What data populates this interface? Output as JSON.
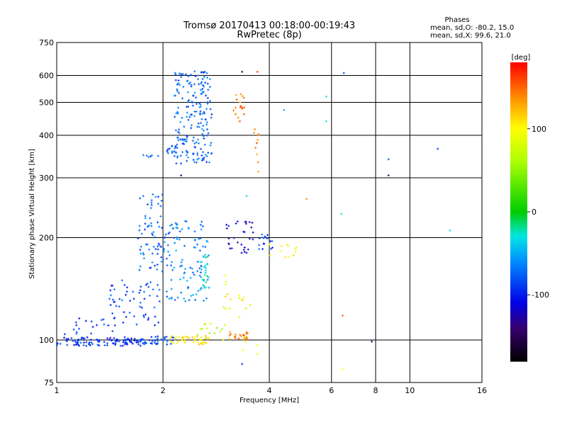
{
  "header": {
    "title_line1": "Tromsø 20170413 00:18:00-00:19:43",
    "title_line2": "RwPretec (8p)",
    "phases_label": "Phases",
    "phases_o": "mean, sd,O: -80.2, 15.0",
    "phases_x": "mean, sd,X:  99.6, 21.0"
  },
  "chart_data": {
    "type": "scatter",
    "xlabel": "Frequency [MHz]",
    "ylabel": "Stationary phase Virtual Height [km]",
    "xscale": "log",
    "yscale": "log",
    "xlim": [
      1,
      16
    ],
    "ylim": [
      75,
      750
    ],
    "xticks": [
      1,
      2,
      4,
      6,
      8,
      10,
      16
    ],
    "yticks": [
      75,
      100,
      200,
      300,
      400,
      500,
      600,
      750
    ],
    "grid": true,
    "colorbar": {
      "label": "[deg]",
      "range": [
        -180,
        180
      ],
      "ticks": [
        100,
        0,
        -100
      ],
      "colormap": "rainbow"
    },
    "clusters": [
      {
        "f": [
          1.0,
          1.75
        ],
        "h": [
          96,
          102
        ],
        "phase": -95,
        "n": 110
      },
      {
        "f": [
          1.75,
          2.15
        ],
        "h": [
          97,
          103
        ],
        "phase": -85,
        "n": 35
      },
      {
        "f": [
          2.1,
          2.7
        ],
        "h": [
          97,
          103
        ],
        "phase": 110,
        "n": 45
      },
      {
        "f": [
          2.5,
          3.0
        ],
        "h": [
          100,
          112
        ],
        "phase": 60,
        "n": 15
      },
      {
        "f": [
          3.05,
          3.5
        ],
        "h": [
          100,
          106
        ],
        "phase": 140,
        "n": 22
      },
      {
        "f": [
          1.05,
          1.5
        ],
        "h": [
          104,
          118
        ],
        "phase": -90,
        "n": 18
      },
      {
        "f": [
          1.4,
          2.0
        ],
        "h": [
          110,
          150
        ],
        "phase": -85,
        "n": 55
      },
      {
        "f": [
          1.7,
          2.0
        ],
        "h": [
          140,
          275
        ],
        "phase": -75,
        "n": 70
      },
      {
        "f": [
          2.0,
          2.7
        ],
        "h": [
          130,
          225
        ],
        "phase": -65,
        "n": 110
      },
      {
        "f": [
          2.55,
          2.7
        ],
        "h": [
          140,
          180
        ],
        "phase": -30,
        "n": 25
      },
      {
        "f": [
          2.95,
          3.4
        ],
        "h": [
          120,
          160
        ],
        "phase": 100,
        "n": 14
      },
      {
        "f": [
          3.0,
          3.6
        ],
        "h": [
          180,
          225
        ],
        "phase": -115,
        "n": 30
      },
      {
        "f": [
          3.7,
          4.1
        ],
        "h": [
          185,
          205
        ],
        "phase": -85,
        "n": 16
      },
      {
        "f": [
          3.9,
          4.8
        ],
        "h": [
          175,
          195
        ],
        "phase": 100,
        "n": 12
      },
      {
        "f": [
          1.75,
          1.95
        ],
        "h": [
          345,
          350
        ],
        "phase": -80,
        "n": 6
      },
      {
        "f": [
          2.05,
          2.3
        ],
        "h": [
          350,
          380
        ],
        "phase": -75,
        "n": 15
      },
      {
        "f": [
          2.15,
          2.75
        ],
        "h": [
          330,
          620
        ],
        "phase": -75,
        "n": 200
      },
      {
        "f": [
          3.15,
          3.4
        ],
        "h": [
          440,
          530
        ],
        "phase": 140,
        "n": 18
      },
      {
        "f": [
          3.6,
          3.75
        ],
        "h": [
          300,
          420
        ],
        "phase": 145,
        "n": 10
      },
      {
        "f": [
          3.25,
          3.75
        ],
        "h": [
          90,
          135
        ],
        "phase": 95,
        "n": 8
      }
    ],
    "points": [
      {
        "f": 3.35,
        "h": 615,
        "phase": -155
      },
      {
        "f": 3.7,
        "h": 615,
        "phase": 160
      },
      {
        "f": 6.5,
        "h": 610,
        "phase": -90
      },
      {
        "f": 5.8,
        "h": 520,
        "phase": -30
      },
      {
        "f": 4.4,
        "h": 475,
        "phase": -50
      },
      {
        "f": 5.8,
        "h": 440,
        "phase": -30
      },
      {
        "f": 2.25,
        "h": 305,
        "phase": -130
      },
      {
        "f": 8.7,
        "h": 340,
        "phase": -80
      },
      {
        "f": 8.7,
        "h": 305,
        "phase": -140
      },
      {
        "f": 12.0,
        "h": 365,
        "phase": -90
      },
      {
        "f": 3.45,
        "h": 265,
        "phase": -30
      },
      {
        "f": 5.1,
        "h": 260,
        "phase": 140
      },
      {
        "f": 6.4,
        "h": 235,
        "phase": -30
      },
      {
        "f": 13.0,
        "h": 210,
        "phase": -35
      },
      {
        "f": 6.45,
        "h": 118,
        "phase": 150
      },
      {
        "f": 6.45,
        "h": 82,
        "phase": 100
      },
      {
        "f": 7.8,
        "h": 99,
        "phase": -140
      },
      {
        "f": 3.35,
        "h": 85,
        "phase": -95
      },
      {
        "f": 3.7,
        "h": 91,
        "phase": 95
      }
    ]
  }
}
